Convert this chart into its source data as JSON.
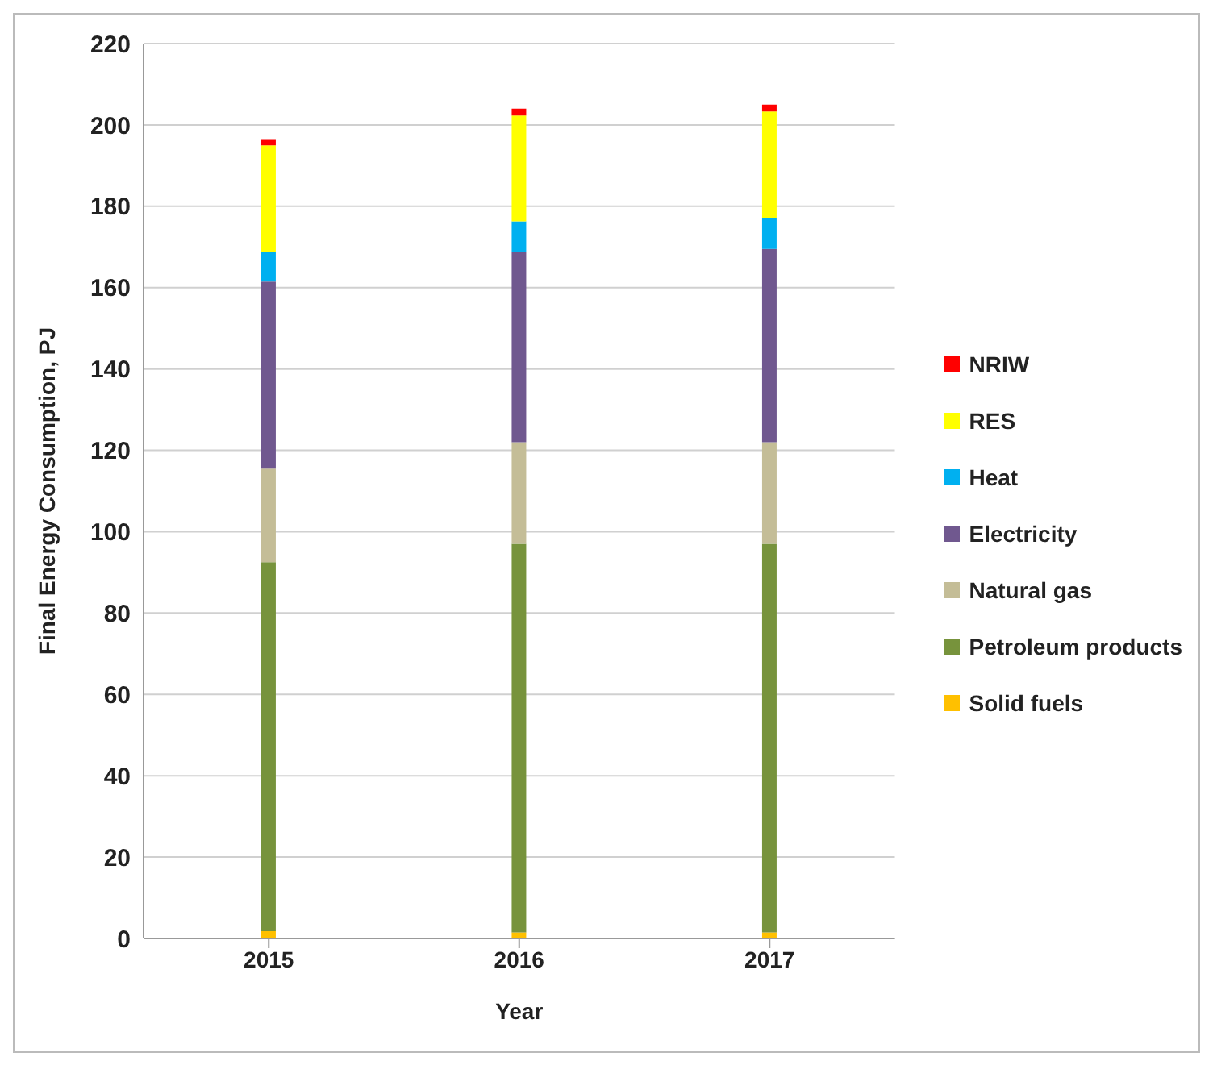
{
  "chart_data": {
    "type": "bar",
    "stacked": true,
    "xlabel": "Year",
    "ylabel": "Final Energy Consumption, PJ",
    "categories": [
      "2015",
      "2016",
      "2017"
    ],
    "series": [
      {
        "name": "Solid fuels",
        "color": "#ffc000",
        "values": [
          1.8,
          1.5,
          1.5
        ]
      },
      {
        "name": "Petroleum products",
        "color": "#77933c",
        "values": [
          90.7,
          95.5,
          95.5
        ]
      },
      {
        "name": "Natural gas",
        "color": "#c4bd97",
        "values": [
          23,
          25,
          25
        ]
      },
      {
        "name": "Electricity",
        "color": "#70588f",
        "values": [
          46,
          46.8,
          47.5
        ]
      },
      {
        "name": "Heat",
        "color": "#00b0f0",
        "values": [
          7.3,
          7.5,
          7.5
        ]
      },
      {
        "name": "RES",
        "color": "#ffff00",
        "values": [
          26.2,
          26,
          26.3
        ]
      },
      {
        "name": "NRIW",
        "color": "#ff0000",
        "values": [
          1.3,
          1.7,
          1.7
        ]
      }
    ],
    "ylim": [
      0,
      220
    ],
    "yticks": [
      0,
      20,
      40,
      60,
      80,
      100,
      120,
      140,
      160,
      180,
      200,
      220
    ],
    "grid": "y",
    "legend": "right"
  }
}
